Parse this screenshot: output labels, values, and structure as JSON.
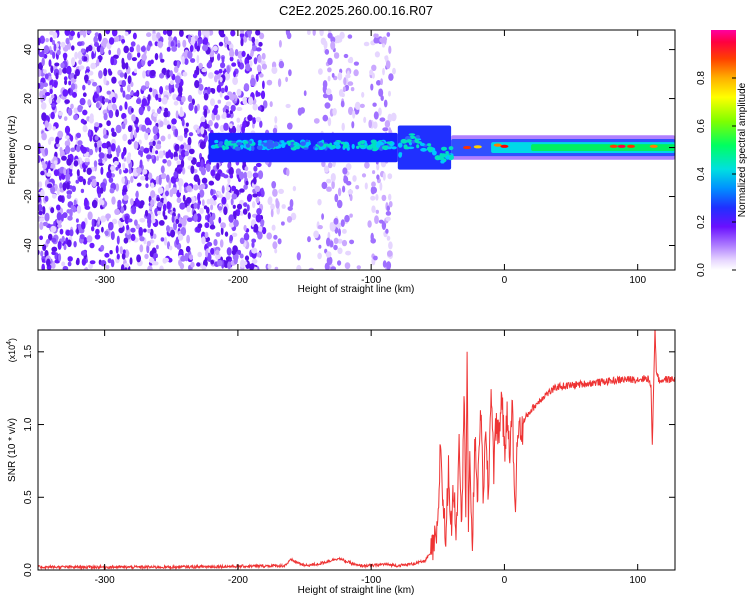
{
  "title": "C2E2.2025.260.00.16.R07",
  "chart_data": [
    {
      "type": "heatmap",
      "xlabel": "Height of straight line (km)",
      "ylabel": "Frequency (Hz)",
      "xlim": [
        -350,
        128
      ],
      "ylim": [
        -50,
        48
      ],
      "xticks": [
        "-300",
        "-200",
        "-100",
        "0",
        "100"
      ],
      "yticks": [
        "-40",
        "-20",
        "0",
        "20",
        "40"
      ],
      "colorbar": {
        "label": "Normalized spectral amplitude",
        "range": [
          0,
          1
        ],
        "ticks": [
          "0.0",
          "0.2",
          "0.4",
          "0.6",
          "0.8"
        ]
      },
      "signal_band": {
        "center_frequency_hz": 0,
        "start_km": -222,
        "description_peak_near_km": 88
      }
    },
    {
      "type": "line",
      "xlabel": "Height of straight line (km)",
      "ylabel": "SNR (10 * v/v)",
      "multiplier": "(x10",
      "multiplier_exp": "4",
      "xlim": [
        -350,
        128
      ],
      "ylim": [
        0,
        1.65
      ],
      "xticks": [
        "-300",
        "-200",
        "-100",
        "0",
        "100"
      ],
      "yticks": [
        "0.0",
        "0.5",
        "1.0",
        "1.5"
      ],
      "series": [
        {
          "name": "SNR",
          "color": "#ee3333",
          "points": [
            [
              -350,
              0.02
            ],
            [
              -300,
              0.02
            ],
            [
              -250,
              0.02
            ],
            [
              -200,
              0.025
            ],
            [
              -165,
              0.03
            ],
            [
              -160,
              0.07
            ],
            [
              -150,
              0.03
            ],
            [
              -140,
              0.04
            ],
            [
              -125,
              0.08
            ],
            [
              -110,
              0.03
            ],
            [
              -100,
              0.03
            ],
            [
              -90,
              0.04
            ],
            [
              -80,
              0.03
            ],
            [
              -70,
              0.04
            ],
            [
              -60,
              0.06
            ],
            [
              -55,
              0.12
            ],
            [
              -50,
              0.25
            ],
            [
              -48,
              0.9
            ],
            [
              -46,
              0.45
            ],
            [
              -44,
              0.2
            ],
            [
              -42,
              0.7
            ],
            [
              -40,
              0.3
            ],
            [
              -38,
              0.55
            ],
            [
              -36,
              0.25
            ],
            [
              -34,
              0.95
            ],
            [
              -32,
              0.35
            ],
            [
              -30,
              1.25
            ],
            [
              -29,
              0.4
            ],
            [
              -28,
              1.5
            ],
            [
              -27,
              0.3
            ],
            [
              -26,
              0.7
            ],
            [
              -24,
              0.2
            ],
            [
              -22,
              0.9
            ],
            [
              -20,
              0.5
            ],
            [
              -18,
              1.15
            ],
            [
              -16,
              0.55
            ],
            [
              -14,
              0.9
            ],
            [
              -12,
              0.5
            ],
            [
              -10,
              1.3
            ],
            [
              -8,
              0.7
            ],
            [
              -6,
              1.05
            ],
            [
              -4,
              0.9
            ],
            [
              -2,
              1.25
            ],
            [
              0,
              0.8
            ],
            [
              2,
              1.05
            ],
            [
              4,
              0.85
            ],
            [
              6,
              1.1
            ],
            [
              8,
              0.35
            ],
            [
              10,
              1.0
            ],
            [
              13,
              0.95
            ],
            [
              16,
              1.05
            ],
            [
              20,
              1.1
            ],
            [
              25,
              1.15
            ],
            [
              30,
              1.2
            ],
            [
              35,
              1.23
            ],
            [
              40,
              1.26
            ],
            [
              50,
              1.27
            ],
            [
              60,
              1.28
            ],
            [
              70,
              1.29
            ],
            [
              80,
              1.3
            ],
            [
              90,
              1.31
            ],
            [
              100,
              1.31
            ],
            [
              108,
              1.32
            ],
            [
              110,
              1.25
            ],
            [
              111,
              0.85
            ],
            [
              112,
              1.3
            ],
            [
              113,
              1.65
            ],
            [
              114,
              1.38
            ],
            [
              116,
              1.3
            ],
            [
              120,
              1.31
            ],
            [
              128,
              1.31
            ]
          ]
        }
      ]
    }
  ]
}
